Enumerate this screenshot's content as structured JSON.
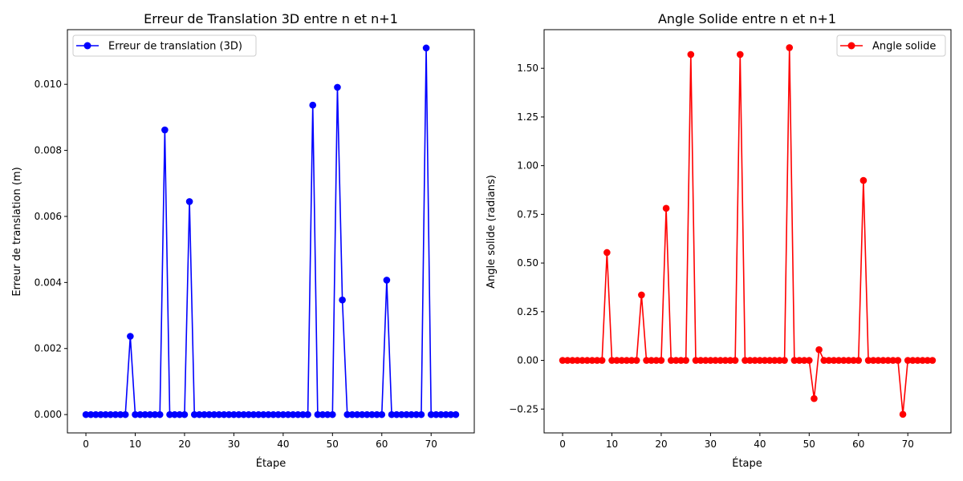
{
  "chart_data": [
    {
      "type": "line",
      "title": "Erreur de Translation 3D entre n et n+1",
      "xlabel": "Étape",
      "ylabel": "Erreur de translation (m)",
      "xlim": [
        -3.75,
        78.75
      ],
      "ylim": [
        -0.000555,
        0.011655
      ],
      "xticks": [
        0,
        10,
        20,
        30,
        40,
        50,
        60,
        70
      ],
      "yticks": [
        0.0,
        0.002,
        0.004,
        0.006,
        0.008,
        0.01
      ],
      "ytick_labels": [
        "0.000",
        "0.002",
        "0.004",
        "0.006",
        "0.008",
        "0.010"
      ],
      "legend_position": "upper-left",
      "grid": false,
      "series": [
        {
          "name": "Erreur de translation (3D)",
          "color": "#0000ff",
          "marker": "circle",
          "y": [
            0,
            0,
            0,
            0,
            0,
            0,
            0,
            0,
            0,
            0.00237,
            0,
            0,
            0,
            0,
            0,
            0,
            0.00862,
            0,
            0,
            0,
            0,
            0.00645,
            0,
            0,
            0,
            0,
            0,
            0,
            0,
            0,
            0,
            0,
            0,
            0,
            0,
            0,
            0,
            0,
            0,
            0,
            0,
            0,
            0,
            0,
            0,
            0,
            0.00937,
            0,
            0,
            0,
            0,
            0.00991,
            0.00347,
            0,
            0,
            0,
            0,
            0,
            0,
            0,
            0,
            0.00407,
            0,
            0,
            0,
            0,
            0,
            0,
            0,
            0.0111,
            0,
            0,
            0,
            0,
            0,
            0
          ]
        }
      ]
    },
    {
      "type": "line",
      "title": "Angle Solide entre n et n+1",
      "xlabel": "Étape",
      "ylabel": "Angle solide (radians)",
      "xlim": [
        -3.75,
        78.75
      ],
      "ylim": [
        -0.3724,
        1.6984
      ],
      "xticks": [
        0,
        10,
        20,
        30,
        40,
        50,
        60,
        70
      ],
      "yticks": [
        -0.25,
        0.0,
        0.25,
        0.5,
        0.75,
        1.0,
        1.25,
        1.5
      ],
      "ytick_labels": [
        "−0.25",
        "0.00",
        "0.25",
        "0.50",
        "0.75",
        "1.00",
        "1.25",
        "1.50"
      ],
      "legend_position": "upper-right",
      "grid": false,
      "series": [
        {
          "name": "Angle solide",
          "color": "#ff0000",
          "marker": "circle",
          "y": [
            0,
            0,
            0,
            0,
            0,
            0,
            0,
            0,
            0,
            0.554,
            0,
            0,
            0,
            0,
            0,
            0,
            0.336,
            0,
            0,
            0,
            0,
            0.781,
            0,
            0,
            0,
            0,
            1.571,
            0,
            0,
            0,
            0,
            0,
            0,
            0,
            0,
            0,
            1.571,
            0,
            0,
            0,
            0,
            0,
            0,
            0,
            0,
            0,
            1.606,
            0,
            0,
            0,
            0,
            -0.196,
            0.055,
            0,
            0,
            0,
            0,
            0,
            0,
            0,
            0,
            0.924,
            0,
            0,
            0,
            0,
            0,
            0,
            0,
            -0.277,
            0,
            0,
            0,
            0,
            0,
            0
          ]
        }
      ]
    }
  ]
}
